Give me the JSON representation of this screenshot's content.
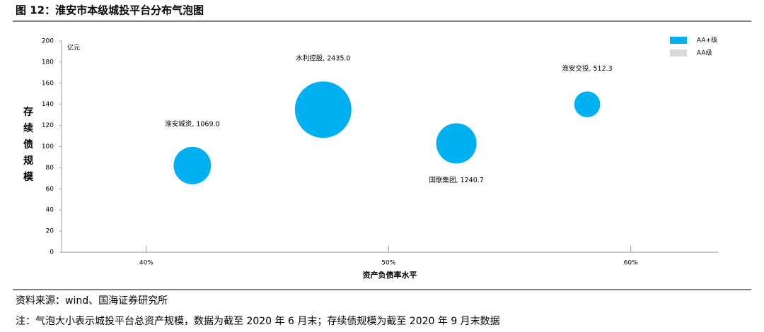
{
  "chart_data": {
    "type": "scatter",
    "title": "图 12：淮安市本级城投平台分布气泡图",
    "ylabel": "存续债规模",
    "xlabel": "资产负债率水平",
    "unit": "亿元",
    "xlim": [
      36.5,
      63.6
    ],
    "xticks": [
      {
        "value": 40,
        "label": "40%"
      },
      {
        "value": 50,
        "label": "50%"
      },
      {
        "value": 60,
        "label": "60%"
      }
    ],
    "ylim": [
      0,
      200
    ],
    "yticks": [
      0,
      20,
      40,
      60,
      80,
      100,
      120,
      140,
      160,
      180,
      200
    ],
    "grid": false,
    "legend": "upper right",
    "series": [
      {
        "name": "AA+级",
        "color": "#00b0f0",
        "x": [
          41.9,
          47.3,
          52.8,
          58.2
        ],
        "values": [
          82,
          135,
          103,
          140
        ],
        "sizes": [
          1069.0,
          2435.0,
          1240.7,
          512.3
        ],
        "point_labels": [
          "淮安城资, 1069.0",
          "水利控股, 2435.0",
          "国联集团, 1240.7",
          "淮安交投, 512.3"
        ]
      },
      {
        "name": "AA级",
        "color": "#d9d9d9",
        "x": [],
        "values": [],
        "sizes": [],
        "point_labels": []
      }
    ],
    "source": "资料来源：wind、国海证券研究所",
    "note": "注：气泡大小表示城投平台总资产规模，数据为截至 2020 年 6 月末；存续债规模为截至 2020 年 9 月末数据"
  }
}
